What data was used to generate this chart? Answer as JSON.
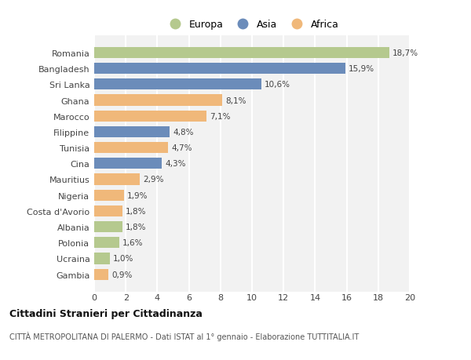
{
  "categories": [
    "Romania",
    "Bangladesh",
    "Sri Lanka",
    "Ghana",
    "Marocco",
    "Filippine",
    "Tunisia",
    "Cina",
    "Mauritius",
    "Nigeria",
    "Costa d'Avorio",
    "Albania",
    "Polonia",
    "Ucraina",
    "Gambia"
  ],
  "values": [
    18.7,
    15.9,
    10.6,
    8.1,
    7.1,
    4.8,
    4.7,
    4.3,
    2.9,
    1.9,
    1.8,
    1.8,
    1.6,
    1.0,
    0.9
  ],
  "labels": [
    "18,7%",
    "15,9%",
    "10,6%",
    "8,1%",
    "7,1%",
    "4,8%",
    "4,7%",
    "4,3%",
    "2,9%",
    "1,9%",
    "1,8%",
    "1,8%",
    "1,6%",
    "1,0%",
    "0,9%"
  ],
  "colors": [
    "#b5c98e",
    "#6b8cba",
    "#6b8cba",
    "#f0b87a",
    "#f0b87a",
    "#6b8cba",
    "#f0b87a",
    "#6b8cba",
    "#f0b87a",
    "#f0b87a",
    "#f0b87a",
    "#b5c98e",
    "#b5c98e",
    "#b5c98e",
    "#f0b87a"
  ],
  "continents": [
    "Europa",
    "Asia",
    "Africa"
  ],
  "legend_colors": [
    "#b5c98e",
    "#6b8cba",
    "#f0b87a"
  ],
  "title": "Cittadini Stranieri per Cittadinanza",
  "subtitle": "CITTÀ METROPOLITANA DI PALERMO - Dati ISTAT al 1° gennaio - Elaborazione TUTTITALIA.IT",
  "xlim": [
    0,
    20
  ],
  "xticks": [
    0,
    2,
    4,
    6,
    8,
    10,
    12,
    14,
    16,
    18,
    20
  ],
  "background_color": "#ffffff",
  "bar_background": "#f2f2f2",
  "grid_color": "#ffffff"
}
